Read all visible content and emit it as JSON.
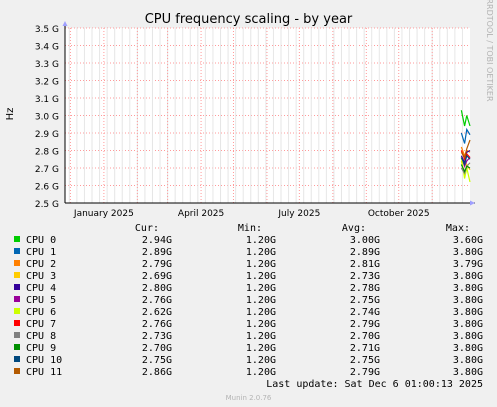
{
  "chart_data": {
    "type": "line",
    "title": "CPU frequency scaling - by year",
    "ylabel": "Hz",
    "side_label": "RRDTOOL / TOBI OETIKER",
    "ylim": [
      2.5,
      3.5
    ],
    "y_ticks": [
      {
        "value": 2.5,
        "label": "2.5 G"
      },
      {
        "value": 2.6,
        "label": "2.6 G"
      },
      {
        "value": 2.7,
        "label": "2.7 G"
      },
      {
        "value": 2.8,
        "label": "2.8 G"
      },
      {
        "value": 2.9,
        "label": "2.9 G"
      },
      {
        "value": 3.0,
        "label": "3.0 G"
      },
      {
        "value": 3.1,
        "label": "3.1 G"
      },
      {
        "value": 3.2,
        "label": "3.2 G"
      },
      {
        "value": 3.3,
        "label": "3.3 G"
      },
      {
        "value": 3.4,
        "label": "3.4 G"
      },
      {
        "value": 3.5,
        "label": "3.5 G"
      }
    ],
    "x_range": [
      "2024-11-26",
      "2025-12-06"
    ],
    "x_ticks": [
      {
        "date": "2025-01-01",
        "label": "January 2025"
      },
      {
        "date": "2025-04-01",
        "label": "April 2025"
      },
      {
        "date": "2025-07-01",
        "label": "July 2025"
      },
      {
        "date": "2025-10-01",
        "label": "October 2025"
      }
    ],
    "grid": true,
    "legend_placement": "bottom",
    "legend_headers": {
      "cur": "Cur:",
      "min": "Min:",
      "avg": "Avg:",
      "max": "Max:"
    },
    "series": [
      {
        "name": "CPU 0",
        "color": "#00cc00",
        "cur": "2.94G",
        "min": "1.20G",
        "avg": "3.00G",
        "max": "3.60G",
        "points": [
          [
            "2025-11-28",
            3.03
          ],
          [
            "2025-12-01",
            2.94
          ],
          [
            "2025-12-03",
            3.0
          ],
          [
            "2025-12-06",
            2.94
          ]
        ]
      },
      {
        "name": "CPU 1",
        "color": "#0066b3",
        "cur": "2.89G",
        "min": "1.20G",
        "avg": "2.89G",
        "max": "3.80G",
        "points": [
          [
            "2025-11-28",
            2.9
          ],
          [
            "2025-12-01",
            2.84
          ],
          [
            "2025-12-03",
            2.92
          ],
          [
            "2025-12-06",
            2.89
          ]
        ]
      },
      {
        "name": "CPU 2",
        "color": "#ff8000",
        "cur": "2.79G",
        "min": "1.20G",
        "avg": "2.81G",
        "max": "3.79G",
        "points": [
          [
            "2025-11-28",
            2.82
          ],
          [
            "2025-12-01",
            2.77
          ],
          [
            "2025-12-03",
            2.8
          ],
          [
            "2025-12-06",
            2.79
          ]
        ]
      },
      {
        "name": "CPU 3",
        "color": "#ffcc00",
        "cur": "2.69G",
        "min": "1.20G",
        "avg": "2.73G",
        "max": "3.80G",
        "points": [
          [
            "2025-11-28",
            2.74
          ],
          [
            "2025-12-01",
            2.66
          ],
          [
            "2025-12-03",
            2.72
          ],
          [
            "2025-12-06",
            2.69
          ]
        ]
      },
      {
        "name": "CPU 4",
        "color": "#330099",
        "cur": "2.80G",
        "min": "1.20G",
        "avg": "2.78G",
        "max": "3.80G",
        "points": [
          [
            "2025-11-28",
            2.77
          ],
          [
            "2025-12-01",
            2.73
          ],
          [
            "2025-12-03",
            2.79
          ],
          [
            "2025-12-06",
            2.8
          ]
        ]
      },
      {
        "name": "CPU 5",
        "color": "#990099",
        "cur": "2.76G",
        "min": "1.20G",
        "avg": "2.75G",
        "max": "3.80G",
        "points": [
          [
            "2025-11-28",
            2.76
          ],
          [
            "2025-12-01",
            2.71
          ],
          [
            "2025-12-03",
            2.74
          ],
          [
            "2025-12-06",
            2.76
          ]
        ]
      },
      {
        "name": "CPU 6",
        "color": "#ccff00",
        "cur": "2.62G",
        "min": "1.20G",
        "avg": "2.74G",
        "max": "3.80G",
        "points": [
          [
            "2025-11-28",
            2.76
          ],
          [
            "2025-12-01",
            2.64
          ],
          [
            "2025-12-03",
            2.7
          ],
          [
            "2025-12-06",
            2.62
          ]
        ]
      },
      {
        "name": "CPU 7",
        "color": "#ff0000",
        "cur": "2.76G",
        "min": "1.20G",
        "avg": "2.79G",
        "max": "3.80G",
        "points": [
          [
            "2025-11-28",
            2.8
          ],
          [
            "2025-12-01",
            2.75
          ],
          [
            "2025-12-03",
            2.78
          ],
          [
            "2025-12-06",
            2.76
          ]
        ]
      },
      {
        "name": "CPU 8",
        "color": "#808080",
        "cur": "2.73G",
        "min": "1.20G",
        "avg": "2.70G",
        "max": "3.80G",
        "points": [
          [
            "2025-11-28",
            2.7
          ],
          [
            "2025-12-01",
            2.67
          ],
          [
            "2025-12-03",
            2.71
          ],
          [
            "2025-12-06",
            2.73
          ]
        ]
      },
      {
        "name": "CPU 9",
        "color": "#008f00",
        "cur": "2.70G",
        "min": "1.20G",
        "avg": "2.71G",
        "max": "3.80G",
        "points": [
          [
            "2025-11-28",
            2.72
          ],
          [
            "2025-12-01",
            2.68
          ],
          [
            "2025-12-03",
            2.71
          ],
          [
            "2025-12-06",
            2.7
          ]
        ]
      },
      {
        "name": "CPU 10",
        "color": "#00487d",
        "cur": "2.75G",
        "min": "1.20G",
        "avg": "2.75G",
        "max": "3.80G",
        "points": [
          [
            "2025-11-28",
            2.76
          ],
          [
            "2025-12-01",
            2.72
          ],
          [
            "2025-12-03",
            2.77
          ],
          [
            "2025-12-06",
            2.75
          ]
        ]
      },
      {
        "name": "CPU 11",
        "color": "#b35a00",
        "cur": "2.86G",
        "min": "1.20G",
        "avg": "2.79G",
        "max": "3.80G",
        "points": [
          [
            "2025-11-28",
            2.79
          ],
          [
            "2025-12-01",
            2.76
          ],
          [
            "2025-12-03",
            2.81
          ],
          [
            "2025-12-06",
            2.86
          ]
        ]
      }
    ]
  },
  "footer": {
    "last_update": "Last update: Sat Dec  6 01:00:13 2025",
    "generator": "Munin 2.0.76"
  }
}
